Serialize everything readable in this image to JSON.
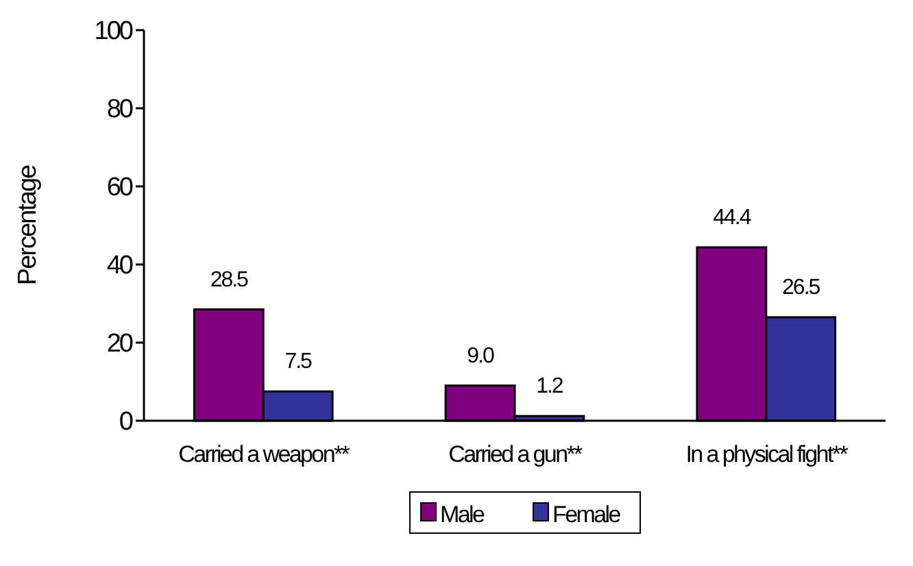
{
  "chart_data": {
    "type": "bar",
    "ylabel": "Percentage",
    "categories": [
      "Carried a weapon**",
      "Carried a gun**",
      "In a physical fight**"
    ],
    "series": [
      {
        "name": "Male",
        "color": "#800080",
        "values": [
          28.5,
          9.0,
          44.4
        ],
        "value_labels": [
          "28.5",
          "9.0",
          "44.4"
        ]
      },
      {
        "name": "Female",
        "color": "#333399",
        "values": [
          7.5,
          1.2,
          26.5
        ],
        "value_labels": [
          "7.5",
          "1.2",
          "26.5"
        ]
      }
    ],
    "ylim": [
      0,
      100
    ],
    "yticks": [
      0,
      20,
      40,
      60,
      80,
      100
    ],
    "grid": false,
    "legend": "bottom"
  }
}
